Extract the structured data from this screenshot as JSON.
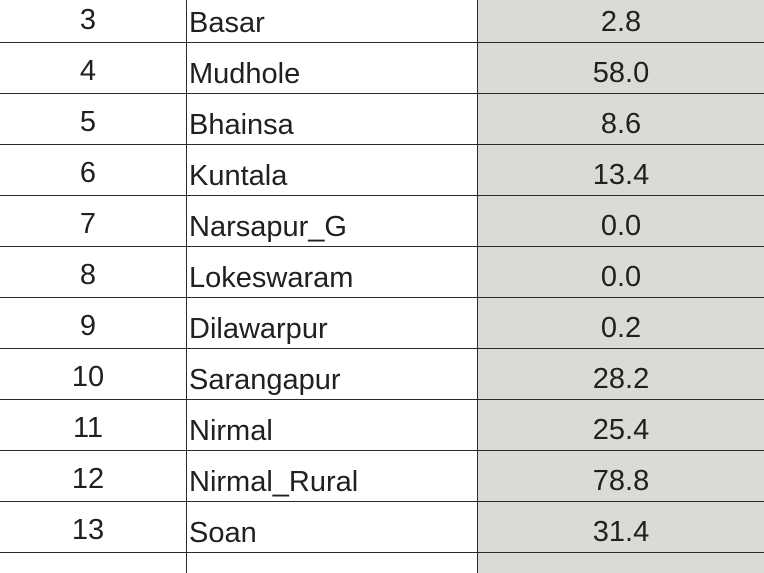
{
  "table": {
    "rows": [
      {
        "num": "3",
        "name": "Basar",
        "value": "2.8"
      },
      {
        "num": "4",
        "name": "Mudhole",
        "value": "58.0"
      },
      {
        "num": "5",
        "name": "Bhainsa",
        "value": "8.6"
      },
      {
        "num": "6",
        "name": "Kuntala",
        "value": "13.4"
      },
      {
        "num": "7",
        "name": "Narsapur_G",
        "value": "0.0"
      },
      {
        "num": "8",
        "name": "Lokeswaram",
        "value": "0.0"
      },
      {
        "num": "9",
        "name": "Dilawarpur",
        "value": "0.2"
      },
      {
        "num": "10",
        "name": "Sarangapur",
        "value": "28.2"
      },
      {
        "num": "11",
        "name": "Nirmal",
        "value": "25.4"
      },
      {
        "num": "12",
        "name": "Nirmal_Rural",
        "value": "78.8"
      },
      {
        "num": "13",
        "name": "Soan",
        "value": "31.4"
      }
    ]
  }
}
